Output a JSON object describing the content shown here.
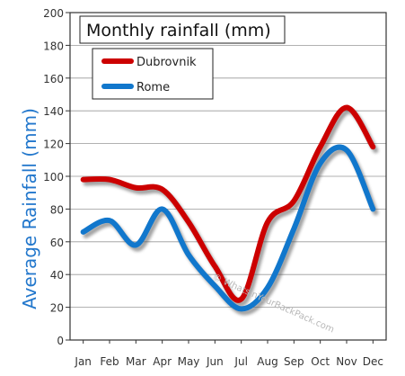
{
  "chart_data": {
    "type": "line",
    "title": "Monthly rainfall (mm)",
    "ylabel": "Average Rainfall (mm)",
    "xlabel": "",
    "categories": [
      "Jan",
      "Feb",
      "Mar",
      "Apr",
      "May",
      "Jun",
      "Jul",
      "Aug",
      "Sep",
      "Oct",
      "Nov",
      "Dec"
    ],
    "ylim": [
      0,
      200
    ],
    "yticks": [
      0,
      20,
      40,
      60,
      80,
      100,
      120,
      140,
      160,
      180,
      200
    ],
    "grid": true,
    "legend": "top-left",
    "watermark": "© WhatsInYourBackPack.com",
    "series": [
      {
        "name": "Dubrovnik",
        "color": "#cc0000",
        "values": [
          98,
          98,
          93,
          92,
          72,
          45,
          25,
          72,
          85,
          118,
          142,
          118
        ]
      },
      {
        "name": "Rome",
        "color": "#1177cc",
        "values": [
          66,
          73,
          58,
          80,
          52,
          33,
          19,
          32,
          68,
          108,
          116,
          80
        ]
      }
    ]
  }
}
